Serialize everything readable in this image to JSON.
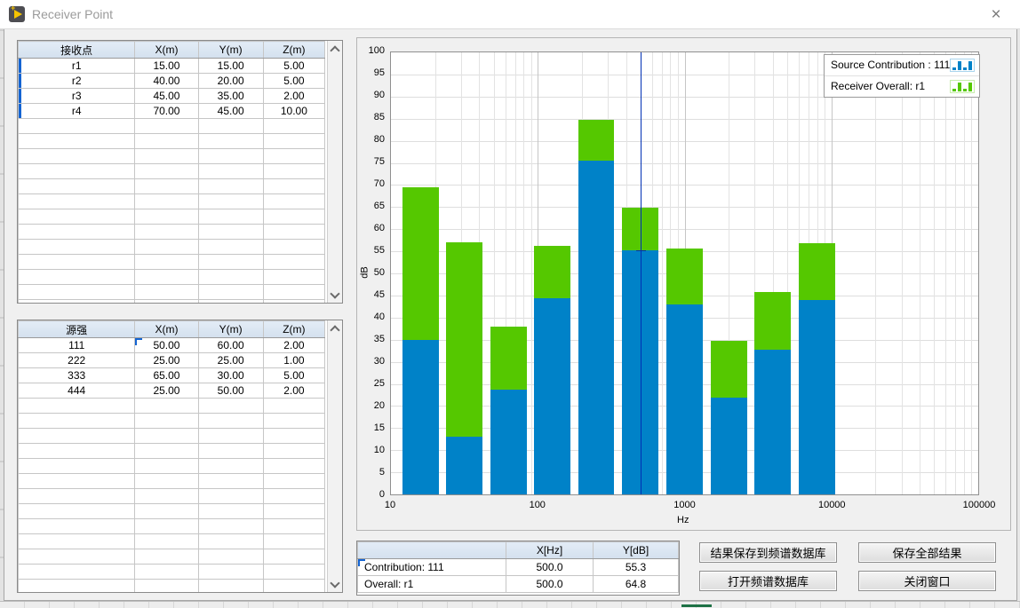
{
  "window": {
    "title": "Receiver Point"
  },
  "receiver_table": {
    "headers": [
      "接收点",
      "X(m)",
      "Y(m)",
      "Z(m)"
    ],
    "rows": [
      [
        "r1",
        "15.00",
        "15.00",
        "5.00"
      ],
      [
        "r2",
        "40.00",
        "20.00",
        "5.00"
      ],
      [
        "r3",
        "45.00",
        "35.00",
        "2.00"
      ],
      [
        "r4",
        "70.00",
        "45.00",
        "10.00"
      ]
    ],
    "empty_rows": 13,
    "row_markers": [
      0,
      1,
      2,
      3
    ]
  },
  "source_table": {
    "headers": [
      "源强",
      "X(m)",
      "Y(m)",
      "Z(m)"
    ],
    "rows": [
      [
        "111",
        "50.00",
        "60.00",
        "2.00"
      ],
      [
        "222",
        "25.00",
        "25.00",
        "1.00"
      ],
      [
        "333",
        "65.00",
        "30.00",
        "5.00"
      ],
      [
        "444",
        "25.00",
        "50.00",
        "2.00"
      ]
    ],
    "empty_rows": 14,
    "selected_cell": {
      "row": 0,
      "col": 1
    }
  },
  "chart_data": {
    "type": "bar",
    "x_scale": "log",
    "x_range_hz": [
      10,
      100000
    ],
    "x_tick_labels": [
      "10",
      "100",
      "1000",
      "10000",
      "100000"
    ],
    "xlabel": "Hz",
    "ylabel": "dB",
    "ylim": [
      0,
      100
    ],
    "y_tick_step": 5,
    "grid": true,
    "legend_position": "top-right",
    "band_center_frequencies_hz": [
      16,
      31.5,
      63,
      125,
      250,
      500,
      1000,
      2000,
      4000,
      8000
    ],
    "series": [
      {
        "name": "Source Contribution : 111",
        "color": "#0082C8",
        "values": [
          35.0,
          13.0,
          23.6,
          44.3,
          75.6,
          55.3,
          43.0,
          21.8,
          32.8,
          44.0
        ]
      },
      {
        "name": "Receiver Overall: r1",
        "color": "#55C800",
        "values": [
          69.5,
          57.0,
          37.9,
          56.3,
          84.8,
          64.8,
          55.7,
          34.7,
          45.8,
          56.9
        ]
      }
    ],
    "cursor": {
      "x_hz": 500,
      "y_db": 55.3,
      "color": "#0030B4"
    }
  },
  "result_table": {
    "headers": [
      "",
      "X[Hz]",
      "Y[dB]"
    ],
    "rows": [
      [
        "Contribution: 111",
        "500.0",
        "55.3"
      ],
      [
        "Overall: r1",
        "500.0",
        "64.8"
      ]
    ],
    "empty_rows": 0,
    "selected_cell": {
      "row": 0,
      "col": 0
    }
  },
  "buttons": {
    "save_to_spectrum_db": "结果保存到频谱数据库",
    "save_all_results": "保存全部结果",
    "open_spectrum_db": "打开频谱数据库",
    "close_window": "关闭窗口"
  },
  "colors": {
    "bar_blue": "#0082C8",
    "bar_green": "#55C800",
    "cursor_blue": "#0030B4",
    "selection_blue": "#1464D2"
  }
}
